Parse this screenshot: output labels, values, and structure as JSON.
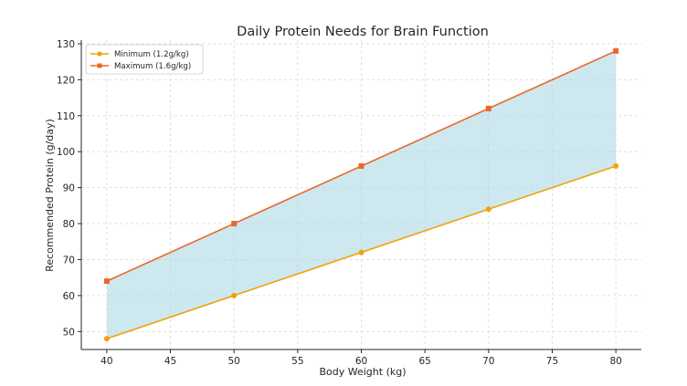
{
  "chart_data": {
    "type": "line",
    "title": "Daily Protein Needs for Brain Function",
    "xlabel": "Body Weight (kg)",
    "ylabel": "Recommended Protein (g/day)",
    "x": [
      40,
      50,
      60,
      70,
      80
    ],
    "xlim": [
      38,
      82
    ],
    "ylim": [
      45,
      131
    ],
    "xticks": [
      40,
      45,
      50,
      55,
      60,
      65,
      70,
      75,
      80
    ],
    "yticks": [
      50,
      60,
      70,
      80,
      90,
      100,
      110,
      120,
      130
    ],
    "grid": true,
    "legend_position": "top-left",
    "fill_between": {
      "lower": "Minimum (1.2g/kg)",
      "upper": "Maximum (1.6g/kg)",
      "color": "#add8e6"
    },
    "series": [
      {
        "name": "Minimum (1.2g/kg)",
        "values": [
          48,
          60,
          72,
          84,
          96
        ],
        "color": "#f0a30a",
        "marker": "circle"
      },
      {
        "name": "Maximum (1.6g/kg)",
        "values": [
          64,
          80,
          96,
          112,
          128
        ],
        "color": "#e8692b",
        "marker": "square"
      }
    ]
  }
}
